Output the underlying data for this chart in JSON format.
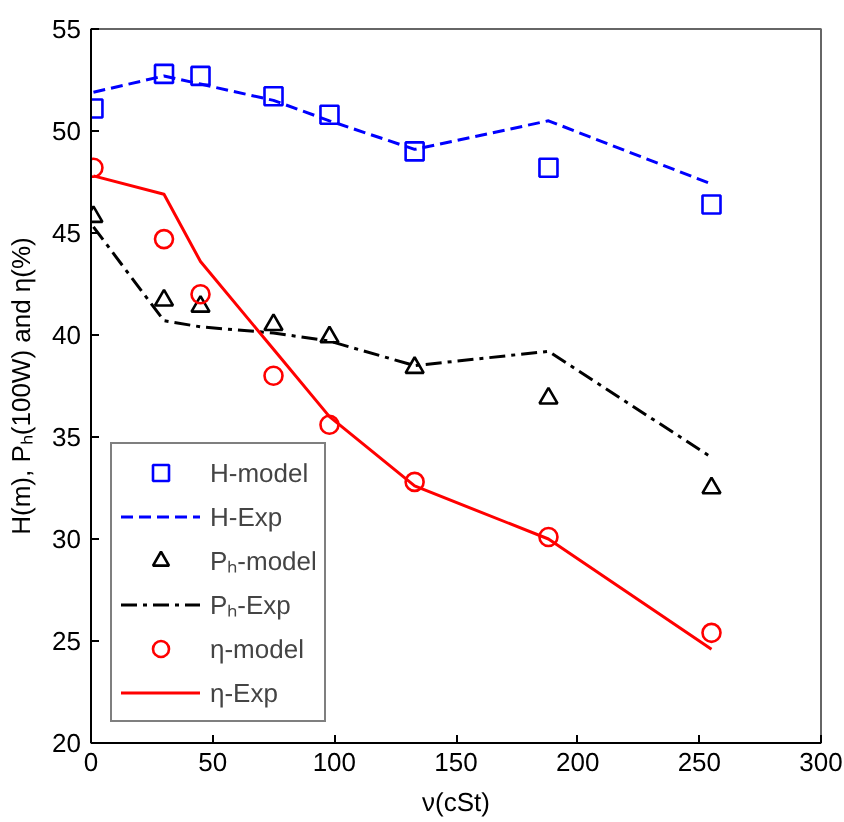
{
  "chart_data": {
    "type": "scatter",
    "xlabel": "ν(cSt)",
    "ylabel": "H(m), Pₕ(100W) and η(%)",
    "xlim": [
      0,
      300
    ],
    "xticks": [
      0,
      50,
      100,
      150,
      200,
      250,
      300
    ],
    "ylim": [
      20,
      55
    ],
    "yticks": [
      20,
      25,
      30,
      35,
      40,
      45,
      50,
      55
    ],
    "grid": false,
    "legend": "bottom left",
    "series": [
      {
        "name": "H-model",
        "marker": "square",
        "color": "#0000ff",
        "x": [
          1,
          30,
          45,
          75,
          98,
          133,
          188,
          255
        ],
        "values": [
          51.1,
          52.8,
          52.7,
          51.7,
          50.8,
          49.0,
          48.2,
          46.4
        ]
      },
      {
        "name": "H-Exp",
        "type": "line",
        "line_style": "dashed",
        "color": "#0000ff",
        "x": [
          1,
          30,
          45,
          75,
          98,
          133,
          188,
          255
        ],
        "values": [
          51.9,
          52.7,
          52.3,
          51.5,
          50.5,
          49.1,
          50.5,
          47.4
        ]
      },
      {
        "name": "Pₕ-model",
        "marker": "triangle",
        "color": "#000000",
        "x": [
          1,
          30,
          45,
          75,
          98,
          133,
          188,
          255
        ],
        "values": [
          45.8,
          41.7,
          41.4,
          40.5,
          39.9,
          38.4,
          36.9,
          32.5
        ]
      },
      {
        "name": "Pₕ-Exp",
        "type": "line",
        "line_style": "dashdot",
        "color": "#000000",
        "x": [
          1,
          30,
          45,
          75,
          98,
          133,
          188,
          255
        ],
        "values": [
          45.3,
          40.7,
          40.4,
          40.1,
          39.7,
          38.5,
          39.2,
          34.0
        ]
      },
      {
        "name": "η-model",
        "marker": "circle",
        "color": "#ff0000",
        "x": [
          1,
          30,
          45,
          75,
          98,
          133,
          188,
          255
        ],
        "values": [
          48.2,
          44.7,
          42.0,
          38.0,
          35.6,
          32.8,
          30.1,
          25.4
        ]
      },
      {
        "name": "η-Exp",
        "type": "line",
        "line_style": "solid",
        "color": "#ff0000",
        "x": [
          1,
          30,
          45,
          75,
          98,
          133,
          188,
          255
        ],
        "values": [
          47.8,
          46.9,
          43.6,
          39.3,
          36.0,
          32.6,
          30.0,
          24.6
        ]
      }
    ]
  }
}
